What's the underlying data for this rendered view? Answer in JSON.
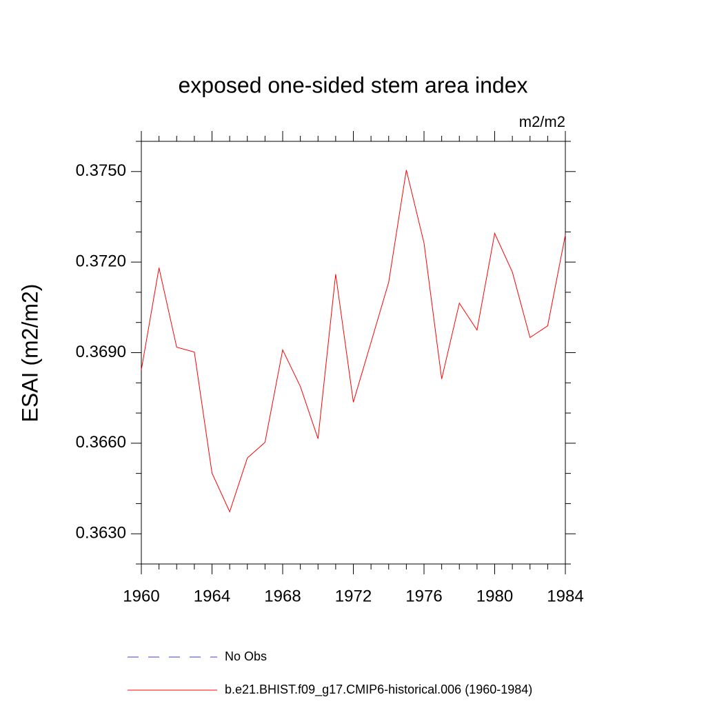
{
  "chart_data": {
    "type": "line",
    "title": "exposed one-sided stem area index",
    "units": "m2/m2",
    "y_label": "ESAI  (m2/m2)",
    "x": [
      1960,
      1961,
      1962,
      1963,
      1964,
      1965,
      1966,
      1967,
      1968,
      1969,
      1970,
      1971,
      1972,
      1973,
      1974,
      1975,
      1976,
      1977,
      1978,
      1979,
      1980,
      1981,
      1982,
      1983,
      1984
    ],
    "series": [
      {
        "name": "No Obs",
        "color": "#3c3cbe",
        "dash": true,
        "values": [
          null,
          null,
          null,
          null,
          null,
          null,
          null,
          null,
          null,
          null,
          null,
          null,
          null,
          null,
          null,
          null,
          null,
          null,
          null,
          null,
          null,
          null,
          null,
          null,
          null
        ]
      },
      {
        "name": "b.e21.BHIST.f09_g17.CMIP6-historical.006 (1960-1984)",
        "color": "#ff0000",
        "dash": false,
        "values": [
          0.36843,
          0.37181,
          0.36918,
          0.36902,
          0.36501,
          0.36373,
          0.36551,
          0.36603,
          0.36909,
          0.36788,
          0.36615,
          0.3716,
          0.36736,
          0.36934,
          0.37133,
          0.37505,
          0.37263,
          0.36813,
          0.37064,
          0.36975,
          0.37295,
          0.37167,
          0.3695,
          0.36989,
          0.3729
        ]
      }
    ],
    "xlim": [
      1960,
      1984
    ],
    "xticks": [
      1960,
      1964,
      1968,
      1972,
      1976,
      1980,
      1984
    ],
    "xminorticks": [
      1961,
      1962,
      1963,
      1965,
      1966,
      1967,
      1969,
      1970,
      1971,
      1973,
      1974,
      1975,
      1977,
      1978,
      1979,
      1981,
      1982,
      1983
    ],
    "ylim": [
      0.362,
      0.376
    ],
    "yticks": [
      {
        "value": 0.363,
        "label": "0.3630"
      },
      {
        "value": 0.366,
        "label": "0.3660"
      },
      {
        "value": 0.369,
        "label": "0.3690"
      },
      {
        "value": 0.372,
        "label": "0.3720"
      },
      {
        "value": 0.375,
        "label": "0.3750"
      }
    ],
    "yminorticks": [
      0.362,
      0.364,
      0.365,
      0.367,
      0.368,
      0.37,
      0.371,
      0.373,
      0.374,
      0.376
    ],
    "grid": false,
    "legend": "bottom"
  }
}
